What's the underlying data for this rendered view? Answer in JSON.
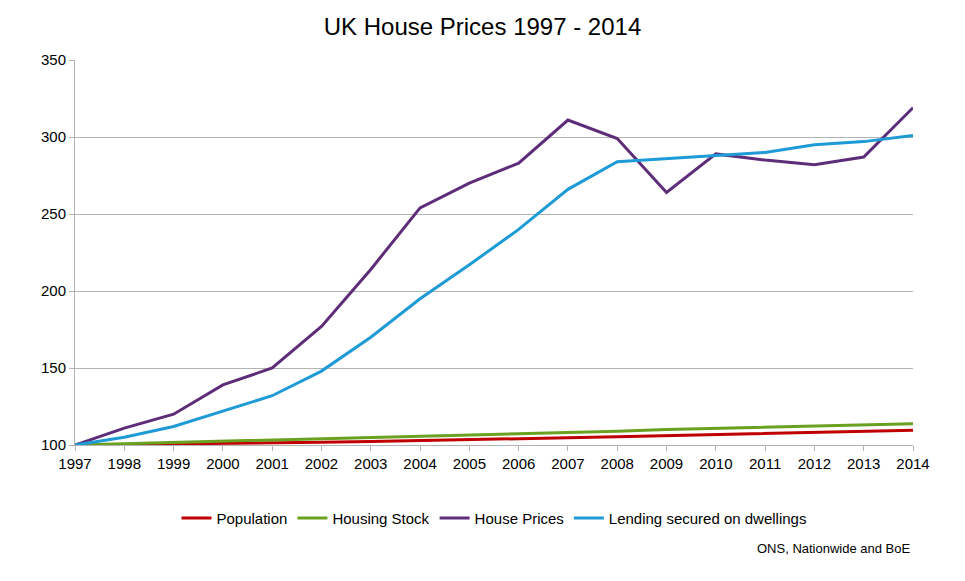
{
  "chart_data": {
    "type": "line",
    "title": "UK House Prices 1997 - 2014",
    "annotations": [
      "ONS, Nationwide and BoE"
    ],
    "x": [
      1997,
      1998,
      1999,
      2000,
      2001,
      2002,
      2003,
      2004,
      2005,
      2006,
      2007,
      2008,
      2009,
      2010,
      2011,
      2012,
      2013,
      2014
    ],
    "series": [
      {
        "name": "Population",
        "color": "#c00000",
        "values": [
          100,
          100.3,
          100.6,
          101,
          101.4,
          101.8,
          102.3,
          102.8,
          103.4,
          104,
          104.7,
          105.4,
          106.1,
          106.8,
          107.5,
          108.2,
          108.8,
          109.5
        ]
      },
      {
        "name": "Housing Stock",
        "color": "#6aa121",
        "values": [
          100,
          100.8,
          101.5,
          102.3,
          103,
          103.8,
          104.6,
          105.4,
          106.2,
          107,
          108,
          109,
          110,
          110.8,
          111.5,
          112.3,
          113,
          113.8
        ]
      },
      {
        "name": "House Prices",
        "color": "#5e2d79",
        "values": [
          100,
          111,
          120,
          139,
          150,
          177,
          214,
          254,
          270,
          283,
          311,
          299,
          264,
          289,
          285,
          282,
          287,
          319
        ]
      },
      {
        "name": "Lending secured on dwellings",
        "color": "#1e9ad6",
        "values": [
          100,
          105,
          112,
          122,
          132,
          148,
          170,
          195,
          217,
          240,
          266,
          284,
          286,
          288,
          290,
          295,
          297,
          301
        ]
      }
    ],
    "xlim": [
      1997,
      2014
    ],
    "xticks": [
      1997,
      1998,
      1999,
      2000,
      2001,
      2002,
      2003,
      2004,
      2005,
      2006,
      2007,
      2008,
      2009,
      2010,
      2011,
      2012,
      2013,
      2014
    ],
    "ylim": [
      100,
      350
    ],
    "yticks": [
      100,
      150,
      200,
      250,
      300,
      350
    ],
    "grid": true,
    "legend": "bottom"
  }
}
